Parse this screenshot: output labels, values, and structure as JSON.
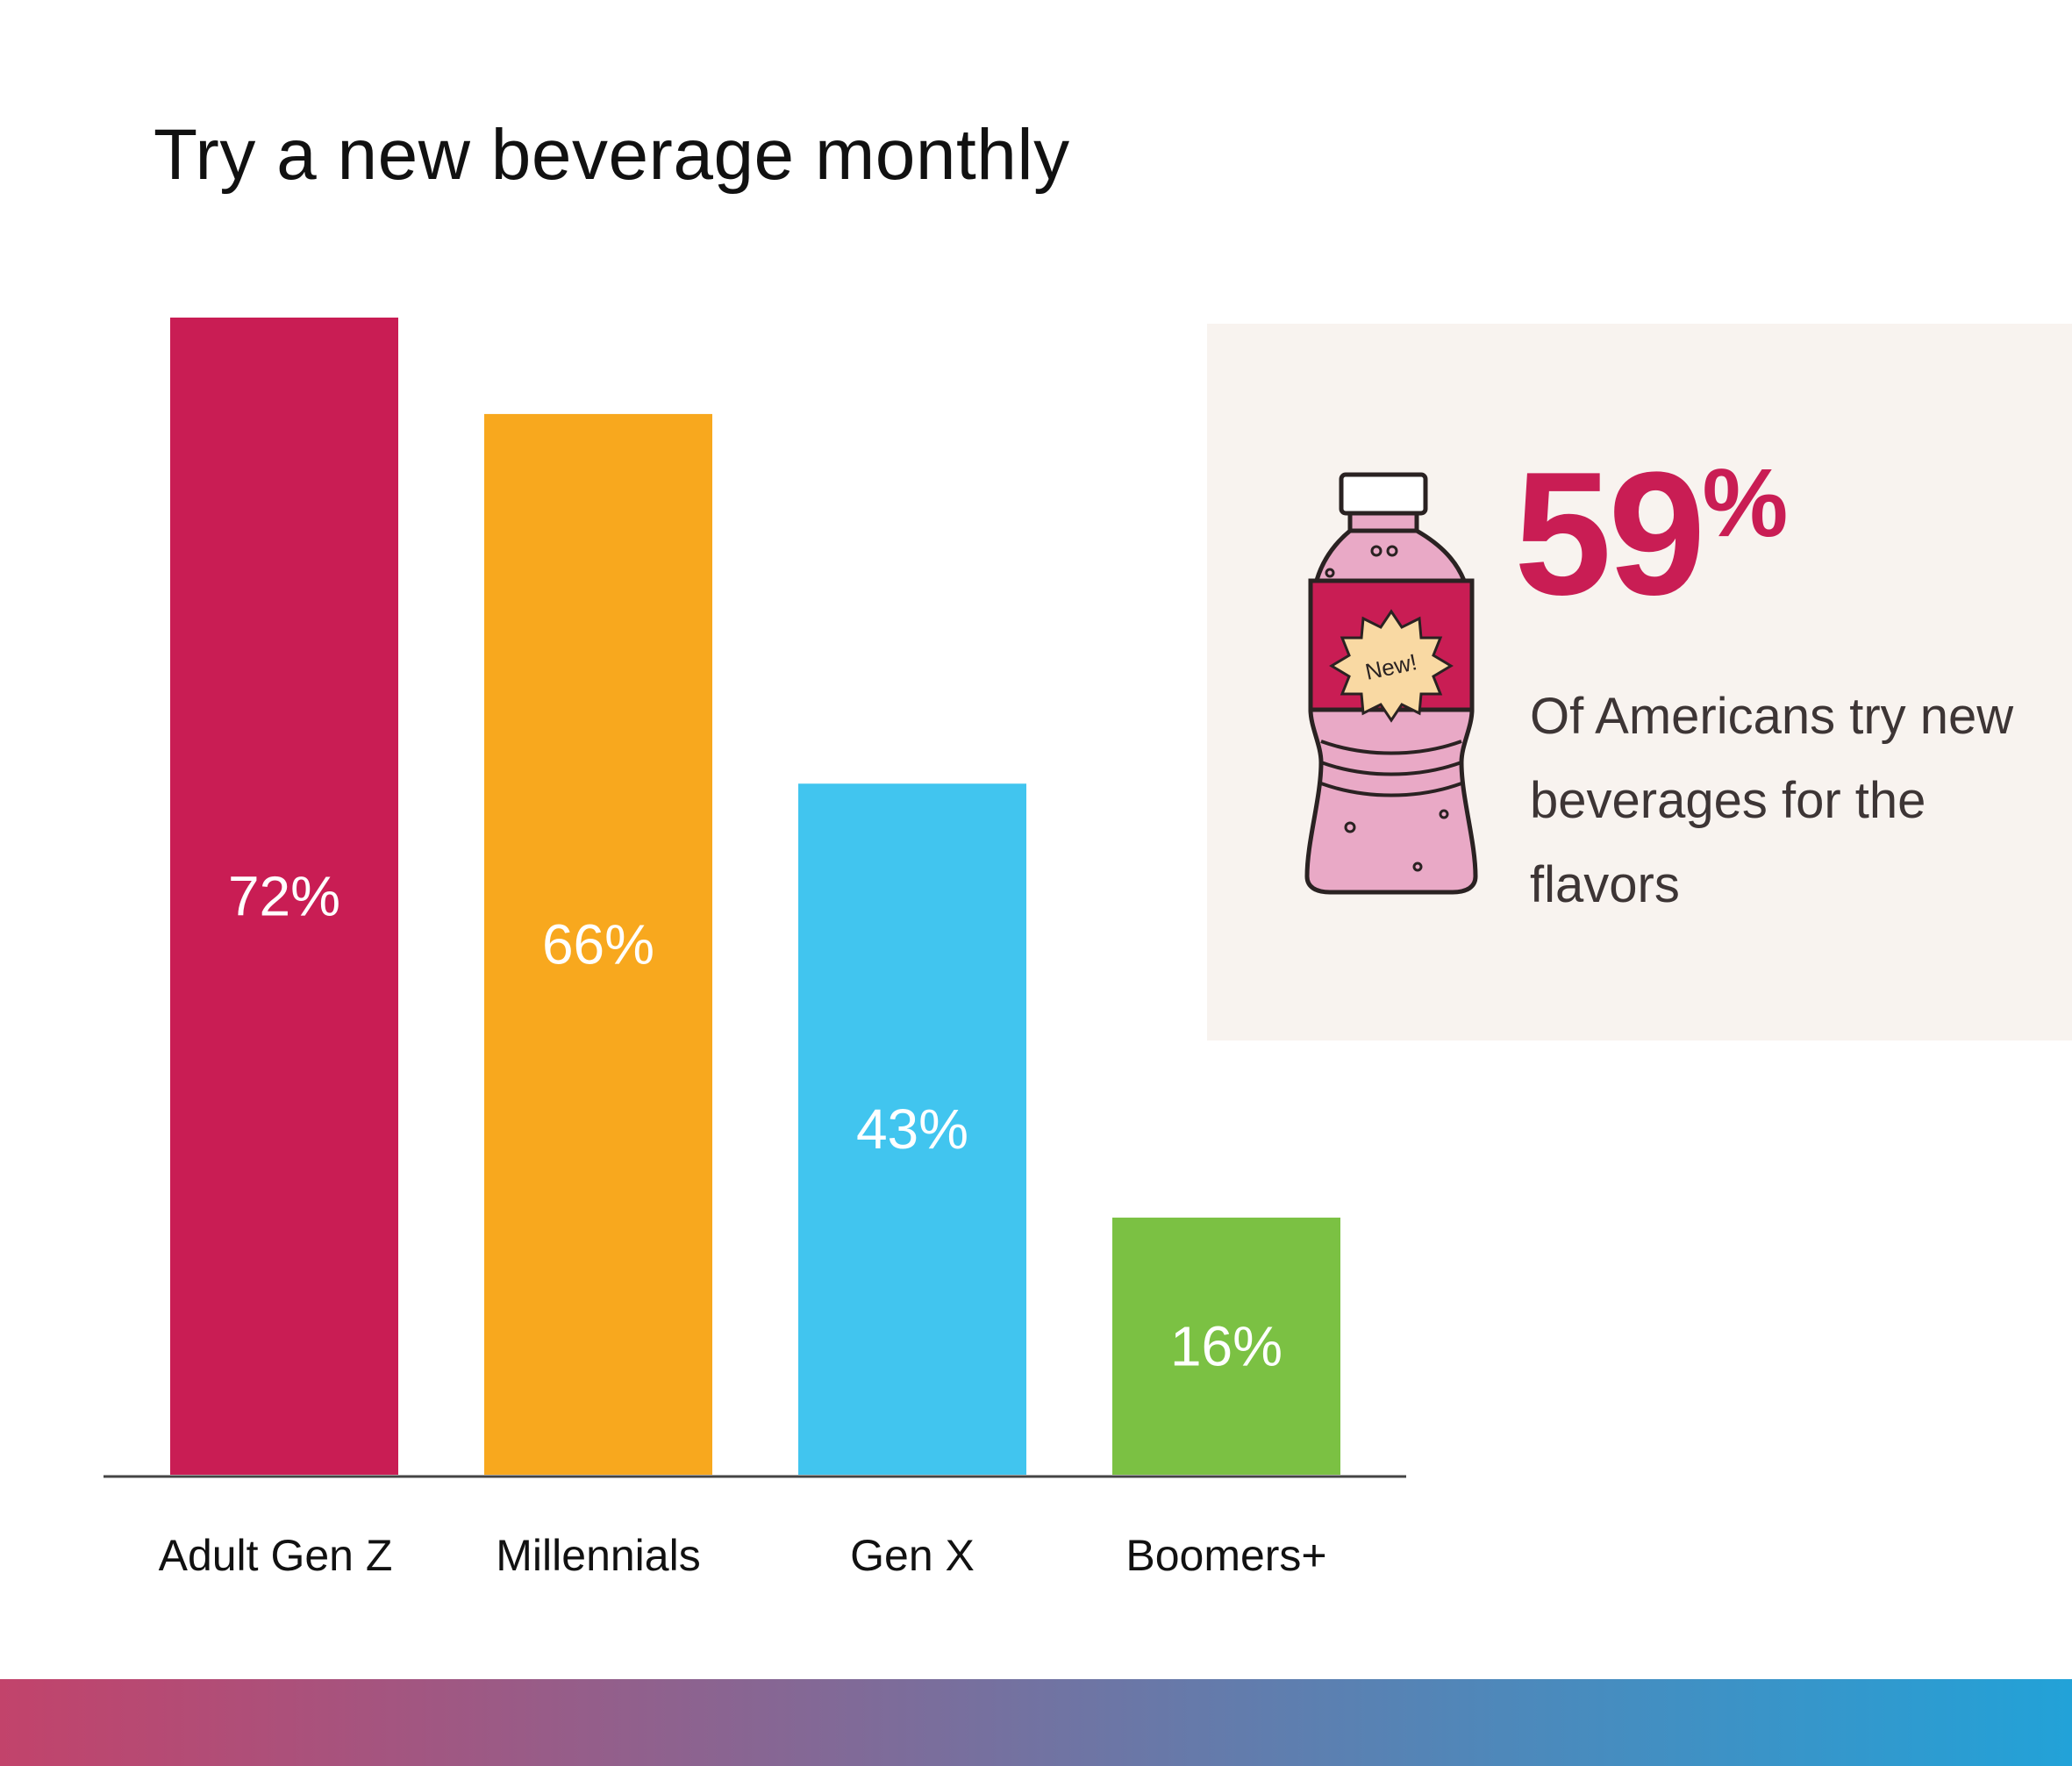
{
  "chart_data": {
    "type": "bar",
    "title": "Try a new beverage monthly",
    "categories": [
      "Adult Gen Z",
      "Millennials",
      "Gen X",
      "Boomers+"
    ],
    "values": [
      72,
      66,
      43,
      16
    ],
    "value_labels": [
      "72%",
      "66%",
      "43%",
      "16%"
    ],
    "colors": [
      "#c91d54",
      "#f8a81e",
      "#41c5ef",
      "#7bc143"
    ],
    "xlabel": "",
    "ylabel": "",
    "ylim": [
      0,
      72
    ],
    "grid": false,
    "legend": "none"
  },
  "callout": {
    "value": "59",
    "suffix": "%",
    "text": "Of Americans try new beverages for the flavors",
    "badge_text": "New!",
    "accent_color": "#c91d54",
    "panel_color": "#f8f3ef"
  },
  "footer": {
    "gradient_start": "#c2436b",
    "gradient_end": "#22a2d8"
  }
}
